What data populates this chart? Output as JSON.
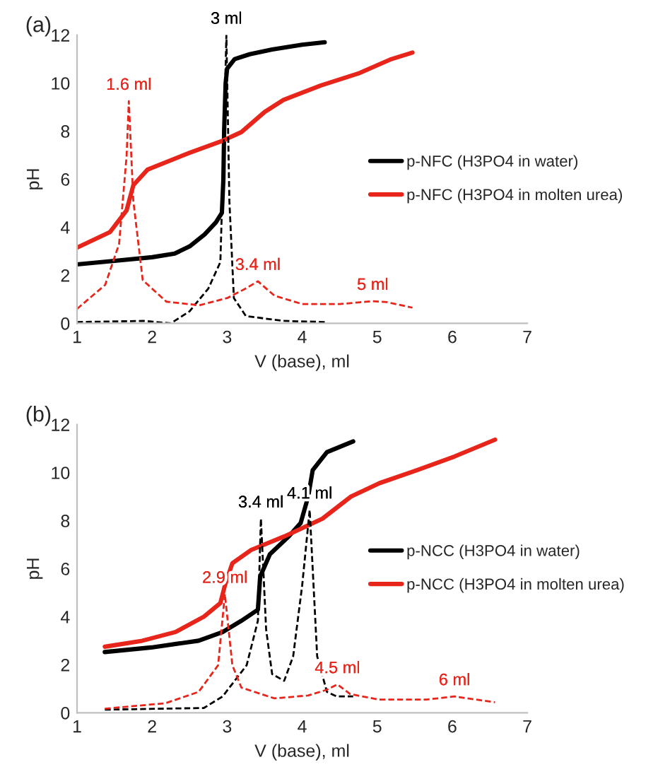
{
  "chart_data": [
    {
      "type": "line",
      "title": "(a)",
      "xlabel": "V (base), ml",
      "ylabel": "pH",
      "xlim": [
        1,
        7
      ],
      "xticks": [
        1,
        2,
        3,
        4,
        5,
        6,
        7
      ],
      "ylim": [
        0,
        12
      ],
      "yticks": [
        0,
        2,
        4,
        6,
        8,
        10,
        12
      ],
      "grid": false,
      "legend": "right",
      "marker": "none",
      "series": [
        {
          "name": "p-NFC (H3PO4 in water)",
          "color": "#000000",
          "line_style": "solid",
          "x": [
            1,
            1.5,
            2,
            2.3,
            2.5,
            2.7,
            2.85,
            2.93,
            2.95,
            2.96,
            2.98,
            3.0,
            3.1,
            3.3,
            3.6,
            4.0,
            4.3
          ],
          "values": [
            2.45,
            2.6,
            2.75,
            2.9,
            3.2,
            3.7,
            4.2,
            4.6,
            6,
            8,
            10,
            10.6,
            11.0,
            11.2,
            11.4,
            11.6,
            11.7
          ]
        },
        {
          "name": "p-NFC (H3PO4 in molten urea)",
          "color": "#e8251b",
          "line_style": "solid",
          "x": [
            1,
            1.44,
            1.66,
            1.75,
            1.94,
            2.5,
            2.94,
            3.19,
            3.5,
            3.75,
            4.25,
            4.75,
            5.19,
            5.47
          ],
          "values": [
            3.15,
            3.8,
            4.7,
            5.75,
            6.4,
            7.1,
            7.6,
            7.96,
            8.8,
            9.3,
            9.9,
            10.4,
            11.0,
            11.27
          ]
        },
        {
          "color": "#000000",
          "line_style": "dashed",
          "x": [
            1,
            1.88,
            2.25,
            2.5,
            2.75,
            2.91,
            2.95,
            2.99,
            3.03,
            3.09,
            3.25,
            3.75,
            4.31
          ],
          "values": [
            0.05,
            0.1,
            0,
            0.5,
            1.45,
            2.55,
            6.9,
            12,
            5.1,
            1.05,
            0.3,
            0.1,
            0.05
          ]
        },
        {
          "color": "#e8251b",
          "line_style": "dashed",
          "x": [
            1,
            1.375,
            1.56,
            1.66,
            1.69,
            1.75,
            1.875,
            2.19,
            2.63,
            3.0,
            3.25,
            3.41,
            3.63,
            4.0,
            4.5,
            4.94,
            5.13,
            5.47
          ],
          "values": [
            0.6,
            1.6,
            3.3,
            6.95,
            9.25,
            5.1,
            1.8,
            0.9,
            0.75,
            1.05,
            1.45,
            1.75,
            1.15,
            0.8,
            0.8,
            0.92,
            0.88,
            0.65
          ]
        }
      ],
      "annotations": [
        {
          "text": "3 ml",
          "x": 2.99,
          "y": 12
        },
        {
          "text": "1.6 ml",
          "x": 1.69,
          "y": 9.25
        },
        {
          "text": "3.4 ml",
          "x": 3.41,
          "y": 1.75
        },
        {
          "text": "5 ml",
          "x": 4.94,
          "y": 0.92
        }
      ]
    },
    {
      "type": "line",
      "title": "(b)",
      "xlabel": "V (base), ml",
      "ylabel": "pH",
      "xlim": [
        1,
        7
      ],
      "xticks": [
        1,
        2,
        3,
        4,
        5,
        6,
        7
      ],
      "ylim": [
        0,
        12
      ],
      "yticks": [
        0,
        2,
        4,
        6,
        8,
        10,
        12
      ],
      "grid": false,
      "legend": "right",
      "marker": "none",
      "series": [
        {
          "name": "p-NCC (H3PO4 in water)",
          "color": "#000000",
          "line_style": "solid",
          "x": [
            1.37,
            1.99,
            2.62,
            2.94,
            3.19,
            3.41,
            3.44,
            3.57,
            3.82,
            3.98,
            4.08,
            4.14,
            4.33,
            4.68
          ],
          "values": [
            2.53,
            2.72,
            3.0,
            3.36,
            3.83,
            4.29,
            5.67,
            6.6,
            7.34,
            7.9,
            9.0,
            10.1,
            10.85,
            11.3
          ]
        },
        {
          "name": "p-NCC (H3PO4 in molten urea)",
          "color": "#e8251b",
          "line_style": "solid",
          "x": [
            1.37,
            1.87,
            2.31,
            2.69,
            2.91,
            2.97,
            3.07,
            3.32,
            3.76,
            4.27,
            4.65,
            5.03,
            5.53,
            6.03,
            6.57
          ],
          "values": [
            2.75,
            3.0,
            3.36,
            4.0,
            4.57,
            5.3,
            6.23,
            6.78,
            7.34,
            8.08,
            9.0,
            9.56,
            10.1,
            10.67,
            11.37
          ]
        },
        {
          "color": "#000000",
          "line_style": "dashed",
          "x": [
            1.37,
            2.69,
            2.94,
            3.26,
            3.41,
            3.45,
            3.52,
            3.6,
            3.76,
            3.88,
            4.0,
            4.1,
            4.2,
            4.33,
            4.46,
            4.68
          ],
          "values": [
            0.13,
            0.2,
            0.68,
            1.98,
            3.83,
            8.08,
            3.46,
            1.61,
            1.33,
            2.35,
            5.3,
            8.45,
            2.35,
            0.87,
            0.68,
            0.68
          ]
        },
        {
          "color": "#e8251b",
          "line_style": "dashed",
          "x": [
            1.37,
            2.18,
            2.62,
            2.88,
            2.97,
            3.07,
            3.19,
            3.63,
            4.08,
            4.33,
            4.47,
            4.64,
            5.02,
            5.66,
            6.03,
            6.57
          ],
          "values": [
            0.17,
            0.4,
            0.87,
            1.98,
            4.94,
            1.98,
            1.05,
            0.6,
            0.72,
            0.96,
            1.18,
            0.78,
            0.55,
            0.55,
            0.68,
            0.44
          ]
        }
      ],
      "annotations": [
        {
          "text": "3.4 ml",
          "x": 3.45,
          "y": 8.08
        },
        {
          "text": "4.1 ml",
          "x": 4.1,
          "y": 8.45
        },
        {
          "text": "2.9 ml",
          "x": 2.97,
          "y": 4.94
        },
        {
          "text": "4.5 ml",
          "x": 4.47,
          "y": 1.18
        },
        {
          "text": "6 ml",
          "x": 6.03,
          "y": 0.68
        }
      ]
    }
  ]
}
